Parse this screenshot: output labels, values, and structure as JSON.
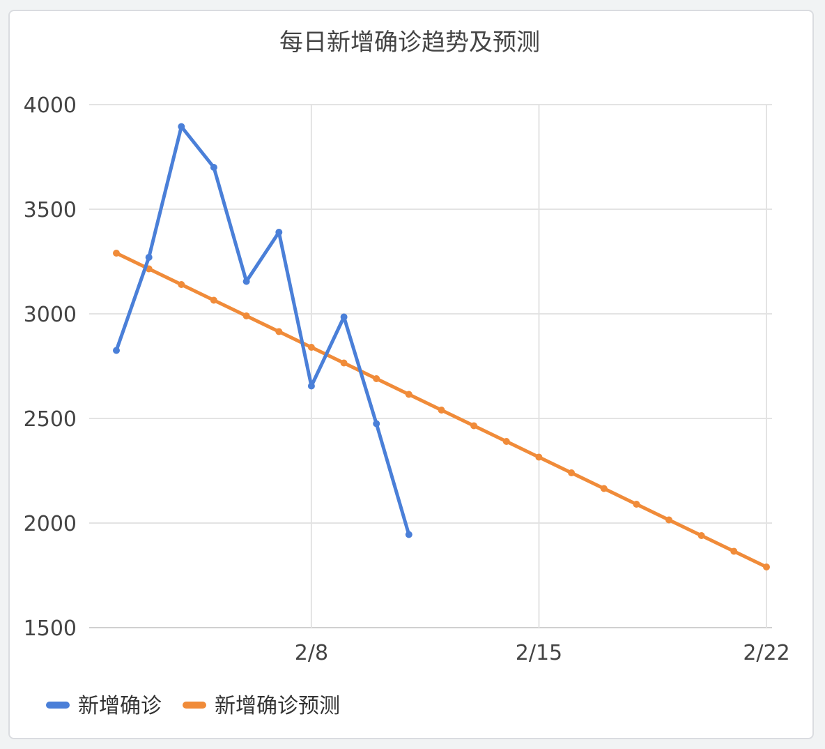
{
  "chart_data": {
    "type": "line",
    "title": "每日新增确诊趋势及预测",
    "xlabel": "",
    "ylabel": "",
    "ylim": [
      1500,
      4000
    ],
    "y_ticks": [
      "4000",
      "3500",
      "3000",
      "2500",
      "2000",
      "1500"
    ],
    "x_ticks": [
      "2/8",
      "2/15",
      "2/22"
    ],
    "grid": true,
    "legend_position": "bottom-left",
    "colors": {
      "actual": "#4a7fd8",
      "forecast": "#f08b39"
    },
    "series": [
      {
        "name": "新增确诊",
        "x": [
          "2/2",
          "2/3",
          "2/4",
          "2/5",
          "2/6",
          "2/7",
          "2/8",
          "2/9",
          "2/10",
          "2/11"
        ],
        "values": [
          2825,
          3270,
          3895,
          3700,
          3155,
          3390,
          2655,
          2985,
          2475,
          1945
        ]
      },
      {
        "name": "新增确诊预测",
        "x": [
          "2/2",
          "2/3",
          "2/4",
          "2/5",
          "2/6",
          "2/7",
          "2/8",
          "2/9",
          "2/10",
          "2/11",
          "2/12",
          "2/13",
          "2/14",
          "2/15",
          "2/16",
          "2/17",
          "2/18",
          "2/19",
          "2/20",
          "2/21",
          "2/22"
        ],
        "values": [
          3290,
          3215,
          3140,
          3065,
          2990,
          2915,
          2840,
          2765,
          2690,
          2615,
          2540,
          2465,
          2390,
          2315,
          2240,
          2165,
          2090,
          2015,
          1940,
          1865,
          1790
        ]
      }
    ]
  }
}
